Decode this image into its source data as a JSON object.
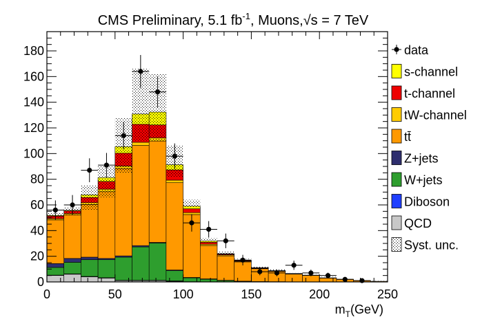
{
  "chart_data": {
    "type": "bar",
    "title": {
      "prefix": "CMS Preliminary, 5.1 fb",
      "superscript": "-1",
      "middle": ", Muons,",
      "sqrt": "√s",
      "suffix": " = 7 TeV"
    },
    "xlabel": {
      "main": "m",
      "sub": "T",
      "unit": "(GeV)"
    },
    "ylabel": "",
    "xlim": [
      0,
      250
    ],
    "ylim": [
      0,
      195
    ],
    "x_ticks": [
      "0",
      "50",
      "100",
      "150",
      "200",
      "250"
    ],
    "y_ticks": [
      "0",
      "20",
      "40",
      "60",
      "80",
      "100",
      "120",
      "140",
      "160",
      "180"
    ],
    "bin_edges": [
      0,
      12.5,
      25,
      37.5,
      50,
      62.5,
      75,
      87.5,
      100,
      112.5,
      125,
      137.5,
      150,
      162.5,
      175,
      187.5,
      200,
      212.5,
      225,
      237.5,
      250
    ],
    "stacked": true,
    "series": [
      {
        "name": "QCD",
        "color": "#c8c8c8",
        "values": [
          5,
          6,
          4,
          3,
          1,
          1,
          1,
          0.5,
          0,
          0,
          0,
          0,
          0,
          0,
          0,
          0,
          0,
          0,
          0,
          0
        ]
      },
      {
        "name": "Diboson",
        "color": "#1f3fff",
        "values": [
          0.3,
          0.3,
          0.3,
          0.3,
          0.3,
          0.3,
          0.3,
          0.3,
          0.2,
          0.1,
          0.1,
          0,
          0,
          0,
          0,
          0,
          0,
          0,
          0,
          0
        ]
      },
      {
        "name": "W+jets",
        "color": "#2e9e2e",
        "values": [
          6,
          9,
          13,
          14,
          18,
          26,
          29,
          8,
          3,
          2,
          1,
          0.5,
          0.3,
          0.2,
          0.1,
          0,
          0,
          0,
          0,
          0
        ]
      },
      {
        "name": "Z+jets",
        "color": "#2e2e6e",
        "values": [
          3,
          3,
          2,
          1,
          1,
          1,
          0.5,
          0.5,
          0.3,
          0.3,
          0.2,
          0.1,
          0,
          0,
          0,
          0,
          0,
          0,
          0,
          0
        ]
      },
      {
        "name": "tt̄",
        "color": "#ff9900",
        "values": [
          34,
          34,
          41,
          52,
          68,
          78,
          79,
          68,
          49,
          26,
          19,
          15,
          10,
          8,
          6,
          5,
          3,
          2,
          1,
          0.5
        ]
      },
      {
        "name": "tW-channel",
        "color": "#ffcc00",
        "values": [
          1,
          1,
          1.5,
          2,
          2,
          2.5,
          2.5,
          2,
          1.5,
          1,
          0.7,
          0.5,
          0.3,
          0.2,
          0.2,
          0.1,
          0.1,
          0,
          0,
          0
        ]
      },
      {
        "name": "t-channel",
        "color": "#ee0000",
        "values": [
          2,
          2,
          4,
          6,
          10,
          14,
          10,
          8,
          3,
          1.5,
          0.7,
          0.5,
          0.4,
          0.3,
          0.2,
          0.2,
          0.1,
          0.1,
          0.1,
          0
        ]
      },
      {
        "name": "s-channel",
        "color": "#ffff00",
        "values": [
          0.5,
          0.5,
          2,
          3,
          5,
          8,
          10,
          4,
          2,
          1,
          0.3,
          0.2,
          0.1,
          0.1,
          0.1,
          0,
          0,
          0,
          0,
          0
        ]
      }
    ],
    "syst_unc": {
      "name": "Syst. unc.",
      "low": [
        50,
        52,
        56,
        66,
        85,
        110,
        110,
        82,
        58,
        30,
        21,
        16,
        10,
        8,
        6,
        5,
        3,
        2,
        1,
        0.3
      ],
      "high": [
        54,
        58,
        75,
        90,
        128,
        166,
        162,
        106,
        64,
        34,
        24,
        18,
        12,
        10,
        7,
        6,
        4,
        2.5,
        1.5,
        0.8
      ]
    },
    "data": {
      "name": "data",
      "x": [
        6.25,
        18.75,
        31.25,
        43.75,
        56.25,
        68.75,
        81.25,
        93.75,
        106.25,
        118.75,
        131.25,
        143.75,
        156.25,
        168.75,
        181.25,
        193.75,
        206.25,
        218.75,
        231.25
      ],
      "y": [
        56,
        60,
        87,
        91,
        114,
        164,
        148,
        98,
        46,
        41,
        32,
        17,
        8,
        7,
        13,
        7,
        5,
        2,
        1
      ],
      "err": [
        7.5,
        7.7,
        9.3,
        9.5,
        10.7,
        12.8,
        12.2,
        9.9,
        6.8,
        6.4,
        5.7,
        4.1,
        2.8,
        2.6,
        3.6,
        2.6,
        2.2,
        1.4,
        1
      ]
    },
    "legend_order": [
      "data",
      "s-channel",
      "t-channel",
      "tW-channel",
      "tt̄",
      "Z+jets",
      "W+jets",
      "Diboson",
      "QCD",
      "Syst. unc."
    ],
    "legend_position": "right",
    "grid": false
  }
}
